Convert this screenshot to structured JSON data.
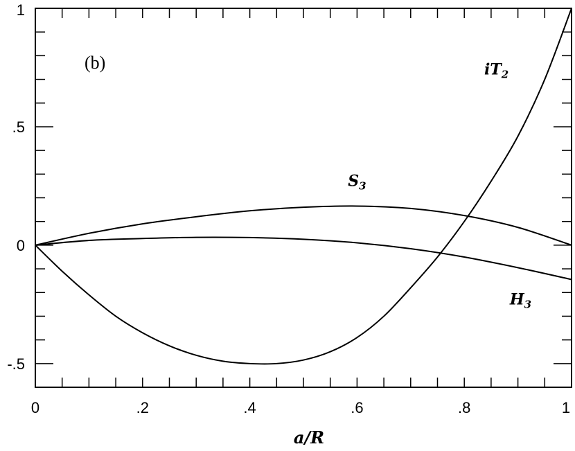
{
  "chart_data": {
    "type": "line",
    "panel_label": "(b)",
    "xlabel": "a/R",
    "ylabel": "",
    "xlim": [
      0,
      1
    ],
    "ylim": [
      -0.6,
      1
    ],
    "grid": false,
    "x_ticks": [
      {
        "value": 0,
        "label": "0"
      },
      {
        "value": 0.2,
        "label": ".2"
      },
      {
        "value": 0.4,
        "label": ".4"
      },
      {
        "value": 0.6,
        "label": ".6"
      },
      {
        "value": 0.8,
        "label": ".8"
      },
      {
        "value": 1,
        "label": "1"
      }
    ],
    "y_ticks": [
      {
        "value": -0.5,
        "label": "-.5"
      },
      {
        "value": 0,
        "label": "0"
      },
      {
        "value": 0.5,
        "label": ".5"
      },
      {
        "value": 1,
        "label": "1"
      }
    ],
    "series": [
      {
        "name": "iT2",
        "label_main": "iT",
        "label_sub": "2",
        "label_at": [
          0.86,
          0.72
        ],
        "points": [
          [
            0,
            0
          ],
          [
            0.05,
            -0.11
          ],
          [
            0.1,
            -0.21
          ],
          [
            0.15,
            -0.3
          ],
          [
            0.2,
            -0.37
          ],
          [
            0.25,
            -0.425
          ],
          [
            0.3,
            -0.465
          ],
          [
            0.35,
            -0.49
          ],
          [
            0.4,
            -0.5
          ],
          [
            0.45,
            -0.5
          ],
          [
            0.5,
            -0.485
          ],
          [
            0.55,
            -0.45
          ],
          [
            0.6,
            -0.39
          ],
          [
            0.65,
            -0.3
          ],
          [
            0.7,
            -0.18
          ],
          [
            0.75,
            -0.05
          ],
          [
            0.8,
            0.1
          ],
          [
            0.85,
            0.27
          ],
          [
            0.9,
            0.46
          ],
          [
            0.95,
            0.7
          ],
          [
            1,
            1
          ]
        ]
      },
      {
        "name": "S3",
        "label_main": "S",
        "label_sub": "3",
        "label_at": [
          0.6,
          0.25
        ],
        "points": [
          [
            0,
            0
          ],
          [
            0.1,
            0.05
          ],
          [
            0.2,
            0.09
          ],
          [
            0.3,
            0.12
          ],
          [
            0.4,
            0.145
          ],
          [
            0.5,
            0.16
          ],
          [
            0.6,
            0.165
          ],
          [
            0.7,
            0.155
          ],
          [
            0.8,
            0.125
          ],
          [
            0.9,
            0.075
          ],
          [
            1,
            0
          ]
        ]
      },
      {
        "name": "H3",
        "label_main": "H",
        "label_sub": "3",
        "label_at": [
          0.905,
          -0.25
        ],
        "points": [
          [
            0,
            0
          ],
          [
            0.1,
            0.02
          ],
          [
            0.2,
            0.028
          ],
          [
            0.3,
            0.033
          ],
          [
            0.4,
            0.032
          ],
          [
            0.5,
            0.025
          ],
          [
            0.6,
            0.01
          ],
          [
            0.7,
            -0.015
          ],
          [
            0.8,
            -0.05
          ],
          [
            0.9,
            -0.095
          ],
          [
            1,
            -0.145
          ]
        ]
      }
    ]
  }
}
